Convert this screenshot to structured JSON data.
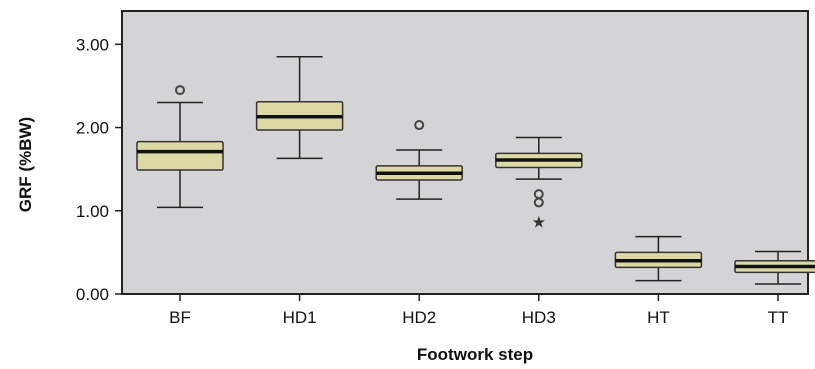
{
  "chart_data": {
    "type": "boxplot",
    "title": "",
    "xlabel": "Footwork step",
    "ylabel": "GRF (%BW)",
    "ylim": [
      0,
      3.4
    ],
    "yticks": [
      0,
      1,
      2,
      3
    ],
    "ytick_labels": [
      "0.00",
      "1.00",
      "2.00",
      "3.00"
    ],
    "grid": false,
    "colors": {
      "plot_background": "#d4d4d6",
      "box_fill": "#ddd9a5",
      "median": "#111111",
      "frame": "#222222"
    },
    "categories": [
      "BF",
      "HD1",
      "HD2",
      "HD3",
      "HT",
      "TT"
    ],
    "boxes": [
      {
        "label": "BF",
        "whisker_low": 1.04,
        "q1": 1.49,
        "median": 1.71,
        "q3": 1.83,
        "whisker_high": 2.3,
        "outliers": [
          2.45
        ],
        "extremes": []
      },
      {
        "label": "HD1",
        "whisker_low": 1.63,
        "q1": 1.97,
        "median": 2.13,
        "q3": 2.31,
        "whisker_high": 2.85,
        "outliers": [],
        "extremes": []
      },
      {
        "label": "HD2",
        "whisker_low": 1.14,
        "q1": 1.37,
        "median": 1.45,
        "q3": 1.54,
        "whisker_high": 1.73,
        "outliers": [
          2.03
        ],
        "extremes": []
      },
      {
        "label": "HD3",
        "whisker_low": 1.38,
        "q1": 1.52,
        "median": 1.61,
        "q3": 1.69,
        "whisker_high": 1.88,
        "outliers": [
          1.2,
          1.1
        ],
        "extremes": [
          0.87
        ]
      },
      {
        "label": "HT",
        "whisker_low": 0.16,
        "q1": 0.32,
        "median": 0.4,
        "q3": 0.5,
        "whisker_high": 0.69,
        "outliers": [],
        "extremes": []
      },
      {
        "label": "TT",
        "whisker_low": 0.12,
        "q1": 0.26,
        "median": 0.33,
        "q3": 0.4,
        "whisker_high": 0.51,
        "outliers": [],
        "extremes": []
      }
    ]
  }
}
